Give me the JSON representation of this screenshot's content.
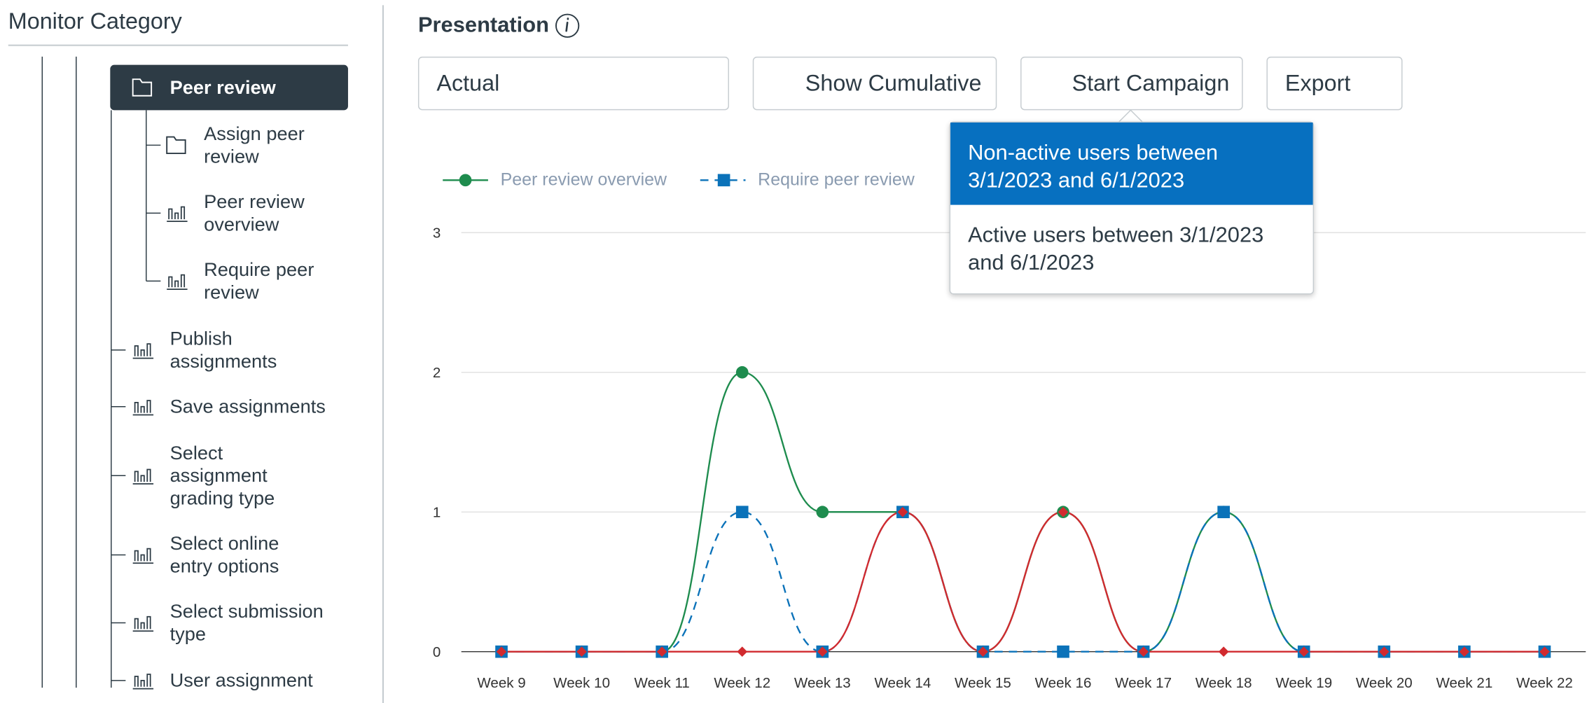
{
  "sidebar": {
    "title": "Monitor Category",
    "items": [
      {
        "label": [
          "Peer review"
        ]
      },
      {
        "label": [
          "Assign peer",
          "review"
        ]
      },
      {
        "label": [
          "Peer review",
          "overview"
        ]
      },
      {
        "label": [
          "Require peer",
          "review"
        ]
      },
      {
        "label": [
          "Publish",
          "assignments"
        ]
      },
      {
        "label": [
          "Save assignments"
        ]
      },
      {
        "label": [
          "Select",
          "assignment",
          "grading type"
        ]
      },
      {
        "label": [
          "Select online",
          "entry options"
        ]
      },
      {
        "label": [
          "Select submission",
          "type"
        ]
      },
      {
        "label": [
          "User assignment"
        ]
      }
    ]
  },
  "header": {
    "title": "Presentation"
  },
  "toolbar": {
    "select": "Actual",
    "cumulative": "Show Cumulative",
    "campaign": "Start Campaign",
    "export": "Export"
  },
  "menu": {
    "items": [
      "Non-active users between 3/1/2023 and 6/1/2023",
      "Active users between 3/1/2023 and 6/1/2023"
    ]
  },
  "chart_data": {
    "type": "line",
    "categories": [
      "Week 9",
      "Week 10",
      "Week 11",
      "Week 12",
      "Week 13",
      "Week 14",
      "Week 15",
      "Week 16",
      "Week 17",
      "Week 18",
      "Week 19",
      "Week 20",
      "Week 21",
      "Week 22"
    ],
    "series": [
      {
        "name": "Peer review overview",
        "color": "#1e8c4e",
        "values": [
          0,
          0,
          0,
          2,
          1,
          1,
          0,
          1,
          0,
          1,
          0,
          0,
          0,
          0
        ]
      },
      {
        "name": "Require peer review",
        "color": "#0b72b9",
        "values": [
          0,
          0,
          0,
          1,
          0,
          1,
          0,
          0,
          0,
          1,
          0,
          0,
          0,
          0
        ]
      },
      {
        "color": "#d12a2f",
        "values": [
          0,
          0,
          0,
          0,
          0,
          1,
          0,
          1,
          0,
          0,
          0,
          0,
          0,
          0
        ]
      }
    ],
    "ylim": [
      0,
      3
    ],
    "yticks": [
      0,
      1,
      2,
      3
    ],
    "grid": true
  }
}
